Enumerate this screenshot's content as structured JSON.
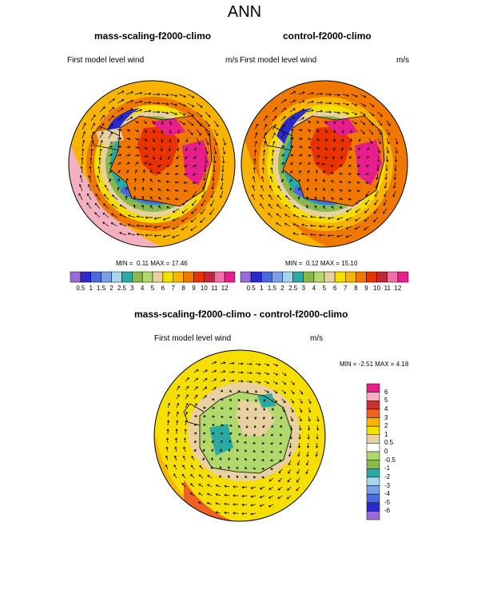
{
  "page_title": "ANN",
  "panels": [
    {
      "title": "mass-scaling-f2000-climo",
      "field_label": "First model level wind",
      "units": "m/s",
      "min_label": "MIN =",
      "min_value": "0.11",
      "max_label": "MAX =",
      "max_value": "17.46"
    },
    {
      "title": "control-f2000-climo",
      "field_label": "First model level wind",
      "units": "m/s",
      "min_label": "MIN =",
      "min_value": "0.12",
      "max_label": "MAX =",
      "max_value": "15.10"
    },
    {
      "title": "mass-scaling-f2000-climo - control-f2000-climo",
      "field_label": "First model level wind",
      "units": "m/s",
      "min_label": "MIN =",
      "min_value": "-2.51",
      "max_label": "MAX =",
      "max_value": "4.18"
    }
  ],
  "colorbar_abs": {
    "labels": [
      "0.5",
      "1",
      "1.5",
      "2",
      "2.5",
      "3",
      "4",
      "5",
      "6",
      "7",
      "8",
      "9",
      "10",
      "11",
      "12"
    ],
    "colors": [
      "#9a6ad8",
      "#2a2acc",
      "#4a6ae0",
      "#7aa0e8",
      "#a8d4ec",
      "#2aaaa2",
      "#8ab84a",
      "#b0d86a",
      "#e8d0a0",
      "#f6de00",
      "#f8b400",
      "#f07800",
      "#e83200",
      "#c02838",
      "#f070a8",
      "#e81e8c"
    ]
  },
  "colorbar_diff": {
    "labels": [
      "6",
      "5",
      "4",
      "3",
      "2",
      "1",
      "0.5",
      "0",
      "-0.5",
      "-1",
      "-2",
      "-3",
      "-4",
      "-5",
      "-6"
    ],
    "colors": [
      "#e81e8c",
      "#f5b0c0",
      "#c83232",
      "#f06020",
      "#f8b400",
      "#f6de00",
      "#e8d0a0",
      "#ffffff",
      "#b0d86a",
      "#8ab84a",
      "#2aaaa2",
      "#a8d4ec",
      "#7aa0e8",
      "#4a6ae0",
      "#2a2acc",
      "#9a6ad8"
    ]
  }
}
